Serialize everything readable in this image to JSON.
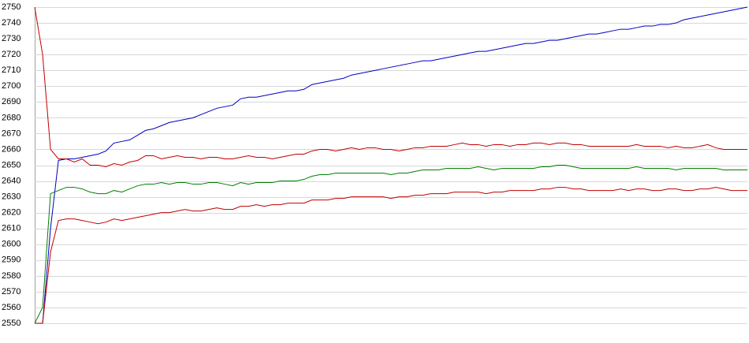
{
  "chart_data": {
    "type": "line",
    "ylim": [
      2550,
      2750
    ],
    "yticks": [
      2550,
      2560,
      2570,
      2580,
      2590,
      2600,
      2610,
      2620,
      2630,
      2640,
      2650,
      2660,
      2670,
      2680,
      2690,
      2700,
      2710,
      2720,
      2730,
      2740,
      2750
    ],
    "grid": true,
    "series": [
      {
        "color": "#0000c0",
        "values": [
          2550,
          2550,
          2610,
          2653,
          2654,
          2654,
          2655,
          2656,
          2657,
          2659,
          2664,
          2665,
          2666,
          2669,
          2672,
          2673,
          2675,
          2677,
          2678,
          2679,
          2680,
          2682,
          2684,
          2686,
          2687,
          2688,
          2692,
          2693,
          2693,
          2694,
          2695,
          2696,
          2697,
          2697,
          2698,
          2701,
          2702,
          2703,
          2704,
          2705,
          2707,
          2708,
          2709,
          2710,
          2711,
          2712,
          2713,
          2714,
          2715,
          2716,
          2716,
          2717,
          2718,
          2719,
          2720,
          2721,
          2722,
          2722,
          2723,
          2724,
          2725,
          2726,
          2727,
          2727,
          2728,
          2729,
          2729,
          2730,
          2731,
          2732,
          2733,
          2733,
          2734,
          2735,
          2736,
          2736,
          2737,
          2738,
          2738,
          2739,
          2739,
          2740,
          2742,
          2743,
          2744,
          2745,
          2746,
          2747,
          2748,
          2749,
          2750
        ]
      },
      {
        "color": "#c00000",
        "values": [
          2750,
          2720,
          2660,
          2654,
          2654,
          2652,
          2654,
          2650,
          2650,
          2649,
          2651,
          2650,
          2652,
          2653,
          2656,
          2656,
          2654,
          2655,
          2656,
          2655,
          2655,
          2654,
          2655,
          2655,
          2654,
          2654,
          2655,
          2656,
          2655,
          2655,
          2654,
          2655,
          2656,
          2657,
          2657,
          2659,
          2660,
          2660,
          2659,
          2660,
          2661,
          2660,
          2661,
          2661,
          2660,
          2660,
          2659,
          2660,
          2661,
          2661,
          2662,
          2662,
          2662,
          2663,
          2664,
          2663,
          2663,
          2662,
          2663,
          2663,
          2662,
          2663,
          2663,
          2664,
          2664,
          2663,
          2664,
          2664,
          2663,
          2663,
          2662,
          2662,
          2662,
          2662,
          2662,
          2662,
          2663,
          2662,
          2662,
          2662,
          2661,
          2662,
          2661,
          2661,
          2662,
          2663,
          2661,
          2660,
          2660,
          2660,
          2660
        ]
      },
      {
        "color": "#008000",
        "values": [
          2550,
          2560,
          2632,
          2634,
          2636,
          2636,
          2635,
          2633,
          2632,
          2632,
          2634,
          2633,
          2635,
          2637,
          2638,
          2638,
          2639,
          2638,
          2639,
          2639,
          2638,
          2638,
          2639,
          2639,
          2638,
          2637,
          2639,
          2638,
          2639,
          2639,
          2639,
          2640,
          2640,
          2640,
          2641,
          2643,
          2644,
          2644,
          2645,
          2645,
          2645,
          2645,
          2645,
          2645,
          2645,
          2644,
          2645,
          2645,
          2646,
          2647,
          2647,
          2647,
          2648,
          2648,
          2648,
          2648,
          2649,
          2648,
          2647,
          2648,
          2648,
          2648,
          2648,
          2648,
          2649,
          2649,
          2650,
          2650,
          2649,
          2648,
          2648,
          2648,
          2648,
          2648,
          2648,
          2648,
          2649,
          2648,
          2648,
          2648,
          2648,
          2647,
          2648,
          2648,
          2648,
          2648,
          2648,
          2647,
          2647,
          2647,
          2647
        ]
      },
      {
        "color": "#c00000",
        "values": [
          2550,
          2550,
          2595,
          2615,
          2616,
          2616,
          2615,
          2614,
          2613,
          2614,
          2616,
          2615,
          2616,
          2617,
          2618,
          2619,
          2620,
          2620,
          2621,
          2622,
          2621,
          2621,
          2622,
          2623,
          2622,
          2622,
          2624,
          2624,
          2625,
          2624,
          2625,
          2625,
          2626,
          2626,
          2626,
          2628,
          2628,
          2628,
          2629,
          2629,
          2630,
          2630,
          2630,
          2630,
          2630,
          2629,
          2630,
          2630,
          2631,
          2631,
          2632,
          2632,
          2632,
          2633,
          2633,
          2633,
          2633,
          2632,
          2633,
          2633,
          2634,
          2634,
          2634,
          2634,
          2635,
          2635,
          2636,
          2636,
          2635,
          2635,
          2634,
          2634,
          2634,
          2634,
          2635,
          2634,
          2635,
          2635,
          2634,
          2634,
          2635,
          2635,
          2634,
          2634,
          2635,
          2635,
          2636,
          2635,
          2634,
          2634,
          2634
        ]
      }
    ]
  }
}
